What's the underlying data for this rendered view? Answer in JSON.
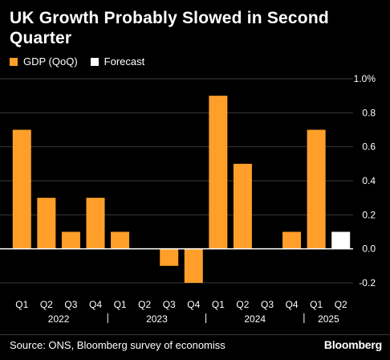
{
  "title": "UK Growth Probably Slowed in Second Quarter",
  "legend": {
    "gdp_label": "GDP (QoQ)",
    "forecast_label": "Forecast"
  },
  "colors": {
    "gdp": "#ff9f2a",
    "forecast": "#ffffff",
    "background": "#000000",
    "grid": "#3a3a3a"
  },
  "source": "Source: ONS, Bloomberg survey of economiss",
  "brand": "Bloomberg",
  "chart_data": {
    "type": "bar",
    "categories": [
      "Q1",
      "Q2",
      "Q3",
      "Q4",
      "Q1",
      "Q2",
      "Q3",
      "Q4",
      "Q1",
      "Q2",
      "Q3",
      "Q4",
      "Q1",
      "Q2"
    ],
    "years": [
      {
        "label": "2022",
        "from": 0,
        "to": 3
      },
      {
        "label": "2023",
        "from": 4,
        "to": 7
      },
      {
        "label": "2024",
        "from": 8,
        "to": 11
      },
      {
        "label": "2025",
        "from": 12,
        "to": 13
      }
    ],
    "series": [
      {
        "name": "GDP (QoQ)",
        "values": [
          0.7,
          0.3,
          0.1,
          0.3,
          0.1,
          0.0,
          -0.1,
          -0.2,
          0.9,
          0.5,
          0.0,
          0.1,
          0.7,
          null
        ]
      },
      {
        "name": "Forecast",
        "values": [
          null,
          null,
          null,
          null,
          null,
          null,
          null,
          null,
          null,
          null,
          null,
          null,
          null,
          0.1
        ]
      }
    ],
    "yticks": [
      -0.2,
      0.0,
      0.2,
      0.4,
      0.6,
      0.8,
      1.0
    ],
    "ytick_labels": [
      "-0.2",
      "0.0",
      "0.2",
      "0.4",
      "0.6",
      "0.8",
      "1.0%"
    ],
    "ylim": [
      -0.2,
      1.0
    ],
    "grid": true,
    "axis_side": "right"
  }
}
